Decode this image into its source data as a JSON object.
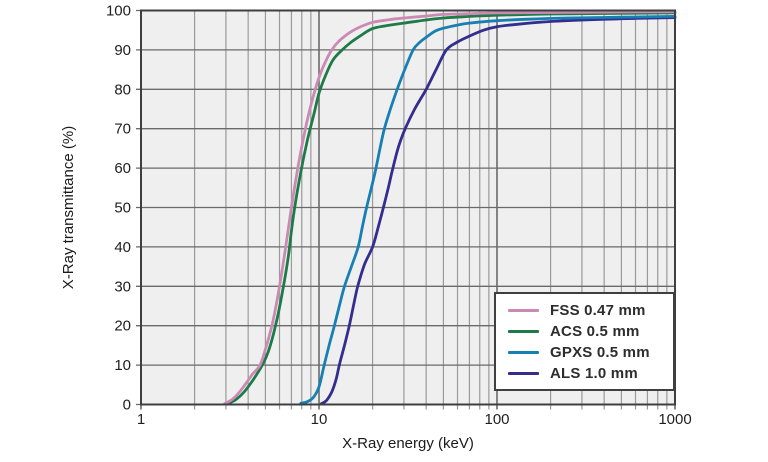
{
  "chart_data": {
    "type": "line",
    "title": "",
    "xlabel": "X-Ray energy (keV)",
    "ylabel": "X-Ray transmittance (%)",
    "x_scale": "log",
    "xlim": [
      1,
      1000
    ],
    "ylim": [
      0,
      100
    ],
    "x_ticks_major": [
      1,
      10,
      100,
      1000
    ],
    "x_tick_labels": [
      "1",
      "10",
      "100",
      "1000"
    ],
    "y_ticks": [
      0,
      10,
      20,
      30,
      40,
      50,
      60,
      70,
      80,
      90,
      100
    ],
    "grid": "major and minor log grid, on",
    "legend_position": "inside lower-right",
    "plot_bg_color": "#efefef",
    "border_color": "#3f3f3f",
    "major_grid_color": "#6a6a6a",
    "minor_grid_color": "#9a9a9a",
    "series": [
      {
        "name": "ALS 1.0 mm",
        "color": "#332d8d",
        "points": [
          [
            10.3,
            0.2
          ],
          [
            11,
            1
          ],
          [
            11.8,
            3.2
          ],
          [
            12.5,
            6.5
          ],
          [
            13,
            10
          ],
          [
            13.9,
            15
          ],
          [
            14.8,
            20
          ],
          [
            15.6,
            25
          ],
          [
            16.5,
            30
          ],
          [
            18,
            35.5
          ],
          [
            20,
            40
          ],
          [
            21.5,
            45
          ],
          [
            23,
            50
          ],
          [
            24.5,
            55
          ],
          [
            26,
            60
          ],
          [
            28,
            65.5
          ],
          [
            30.5,
            70
          ],
          [
            34.5,
            75
          ],
          [
            40,
            80
          ],
          [
            45.5,
            85
          ],
          [
            52,
            90
          ],
          [
            60,
            92
          ],
          [
            70,
            93.5
          ],
          [
            84,
            95
          ],
          [
            100,
            95.9
          ],
          [
            130,
            96.5
          ],
          [
            200,
            97.2
          ],
          [
            350,
            97.7
          ],
          [
            600,
            98.0
          ],
          [
            1000,
            98.2
          ]
        ]
      },
      {
        "name": "GPXS 0.5 mm",
        "color": "#167fb4",
        "points": [
          [
            7.9,
            0.3
          ],
          [
            8.6,
            0.7
          ],
          [
            9.3,
            1.8
          ],
          [
            10,
            4.5
          ],
          [
            10.7,
            10
          ],
          [
            11.4,
            15
          ],
          [
            12.2,
            20
          ],
          [
            13,
            25
          ],
          [
            13.9,
            30
          ],
          [
            15.2,
            35
          ],
          [
            16.6,
            40
          ],
          [
            17.5,
            45
          ],
          [
            18.5,
            50
          ],
          [
            19.7,
            55
          ],
          [
            20.9,
            60
          ],
          [
            22,
            65
          ],
          [
            23.3,
            70
          ],
          [
            25.2,
            75
          ],
          [
            27.5,
            80
          ],
          [
            30.3,
            85
          ],
          [
            33.8,
            90
          ],
          [
            37,
            92
          ],
          [
            40,
            93.2
          ],
          [
            45,
            94.8
          ],
          [
            50,
            95.5
          ],
          [
            60,
            96.3
          ],
          [
            70,
            96.8
          ],
          [
            100,
            97.4
          ],
          [
            150,
            97.8
          ],
          [
            250,
            98.1
          ],
          [
            500,
            98.3
          ],
          [
            1000,
            98.5
          ]
        ]
      },
      {
        "name": "ACS 0.5 mm",
        "color": "#1e7b48",
        "points": [
          [
            3.05,
            0.2
          ],
          [
            3.4,
            1.2
          ],
          [
            3.8,
            3.2
          ],
          [
            4.3,
            6.5
          ],
          [
            4.8,
            10
          ],
          [
            5.2,
            13.5
          ],
          [
            5.7,
            20
          ],
          [
            6.2,
            28
          ],
          [
            6.7,
            37
          ],
          [
            7.0,
            44
          ],
          [
            7.3,
            50
          ],
          [
            7.9,
            59
          ],
          [
            8.6,
            67
          ],
          [
            9.4,
            74
          ],
          [
            10,
            79
          ],
          [
            11,
            84
          ],
          [
            12,
            87.5
          ],
          [
            13.5,
            90
          ],
          [
            15,
            91.8
          ],
          [
            17,
            93.5
          ],
          [
            20,
            95.4
          ],
          [
            25,
            96.3
          ],
          [
            30,
            96.8
          ],
          [
            40,
            97.6
          ],
          [
            50,
            98.1
          ],
          [
            70,
            98.5
          ],
          [
            100,
            98.8
          ],
          [
            200,
            99.1
          ],
          [
            400,
            99.25
          ],
          [
            1000,
            99.4
          ]
        ]
      },
      {
        "name": "FSS 0.47 mm",
        "color": "#cb8ab3",
        "points": [
          [
            2.95,
            0.2
          ],
          [
            3.3,
            1.5
          ],
          [
            3.7,
            4
          ],
          [
            4.2,
            7.5
          ],
          [
            4.66,
            10
          ],
          [
            5,
            14
          ],
          [
            5.5,
            21
          ],
          [
            6,
            30
          ],
          [
            6.5,
            40
          ],
          [
            7,
            50
          ],
          [
            7.6,
            60
          ],
          [
            8.3,
            69
          ],
          [
            9,
            76
          ],
          [
            10,
            83
          ],
          [
            11,
            87.5
          ],
          [
            11.8,
            90
          ],
          [
            13,
            92.3
          ],
          [
            15,
            94.5
          ],
          [
            17,
            95.8
          ],
          [
            20,
            97
          ],
          [
            25,
            97.7
          ],
          [
            30,
            98.1
          ],
          [
            40,
            98.6
          ],
          [
            50,
            99
          ],
          [
            70,
            99.2
          ],
          [
            100,
            99.4
          ],
          [
            200,
            99.5
          ],
          [
            400,
            99.6
          ],
          [
            1000,
            99.7
          ]
        ]
      }
    ],
    "legend_order": [
      "FSS 0.47 mm",
      "ACS 0.5 mm",
      "GPXS 0.5 mm",
      "ALS 1.0 mm"
    ]
  }
}
